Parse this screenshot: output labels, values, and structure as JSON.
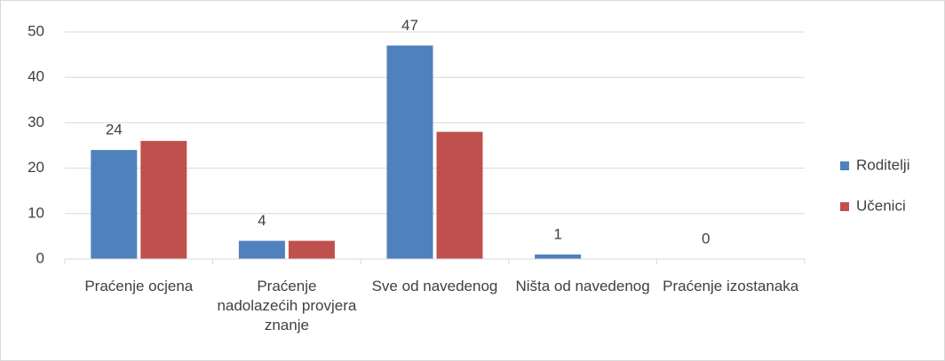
{
  "chart_data": {
    "type": "bar",
    "categories": [
      "Praćenje ocjena",
      "Praćenje nadolazećih provjera znanje",
      "Sve od navedenog",
      "Ništa od navedenog",
      "Praćenje izostanaka"
    ],
    "series": [
      {
        "name": "Roditelji",
        "color": "#4f81bd",
        "values": [
          24,
          4,
          47,
          1,
          0
        ]
      },
      {
        "name": "Učenici",
        "color": "#c0504d",
        "values": [
          26,
          4,
          28,
          0,
          0
        ]
      }
    ],
    "ylim": [
      0,
      50
    ],
    "yticks": [
      0,
      10,
      20,
      30,
      40,
      50
    ],
    "grid": true,
    "legend": "right"
  }
}
